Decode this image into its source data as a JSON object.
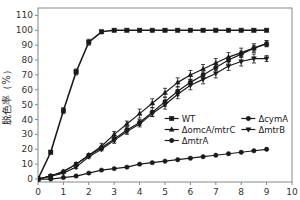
{
  "chart_data": {
    "type": "line",
    "ylabel": "脱色率（%）",
    "x": [
      0,
      0.5,
      1,
      1.5,
      2,
      2.5,
      3,
      3.5,
      4,
      4.5,
      5,
      5.5,
      6,
      6.5,
      7,
      7.5,
      8,
      8.5,
      9
    ],
    "xlim": [
      0,
      10
    ],
    "xticks": [
      0,
      1,
      2,
      3,
      4,
      5,
      6,
      7,
      8,
      9,
      10
    ],
    "ylim": [
      -2,
      115
    ],
    "yticks": [
      0,
      10,
      20,
      30,
      40,
      50,
      60,
      70,
      80,
      90,
      100,
      110
    ],
    "grid": false,
    "legend": "lower right",
    "series": [
      {
        "name": "WT",
        "color": "#1a1a1a",
        "marker": "square",
        "line_style": "solid",
        "values": [
          0,
          18,
          46,
          72,
          92,
          99,
          100,
          100,
          100,
          100,
          100,
          100,
          100,
          100,
          100,
          100,
          100,
          100,
          100
        ],
        "errors": [
          0,
          1,
          2,
          2,
          2,
          1,
          0,
          0,
          0,
          0,
          0,
          0,
          0,
          0,
          0,
          0,
          0,
          0,
          0
        ]
      },
      {
        "name": "ΔcymA",
        "color": "#1a1a1a",
        "marker": "circle",
        "line_style": "solid",
        "values": [
          0,
          2,
          5,
          10,
          16,
          21,
          27,
          33,
          38,
          45,
          52,
          59,
          65,
          70,
          75,
          80,
          84,
          88,
          91
        ],
        "errors": [
          0,
          0,
          0,
          1,
          1,
          1,
          2,
          2,
          2,
          3,
          3,
          3,
          2,
          2,
          2,
          2,
          2,
          2,
          2
        ]
      },
      {
        "name": "ΔomcA/mtrC",
        "color": "#1a1a1a",
        "marker": "triangle-up",
        "line_style": "solid",
        "values": [
          0,
          2,
          5,
          10,
          16,
          22,
          30,
          37,
          44,
          51,
          58,
          65,
          70,
          74,
          78,
          82,
          85,
          88,
          91
        ],
        "errors": [
          0,
          0,
          0,
          1,
          1,
          2,
          2,
          2,
          3,
          3,
          3,
          3,
          3,
          3,
          3,
          3,
          3,
          3,
          2
        ]
      },
      {
        "name": "ΔmtrB",
        "color": "#1a1a1a",
        "marker": "triangle-down",
        "line_style": "solid",
        "values": [
          0,
          2,
          4,
          8,
          15,
          20,
          26,
          32,
          37,
          44,
          50,
          57,
          63,
          67,
          71,
          76,
          79,
          81,
          81
        ],
        "errors": [
          0,
          0,
          0,
          1,
          1,
          1,
          2,
          2,
          2,
          2,
          3,
          3,
          3,
          3,
          3,
          3,
          3,
          3,
          2
        ]
      },
      {
        "name": "ΔmtrA",
        "color": "#1a1a1a",
        "marker": "circle",
        "line_style": "solid",
        "values": [
          0,
          0,
          1,
          2,
          4,
          6,
          7,
          8,
          10,
          11,
          12,
          13,
          14,
          15,
          16,
          17,
          18,
          19,
          20
        ],
        "errors": [
          0,
          0,
          0,
          0,
          0,
          0,
          0,
          0,
          0,
          0,
          0,
          0,
          0,
          0,
          0,
          0,
          0,
          0,
          0
        ]
      }
    ]
  }
}
